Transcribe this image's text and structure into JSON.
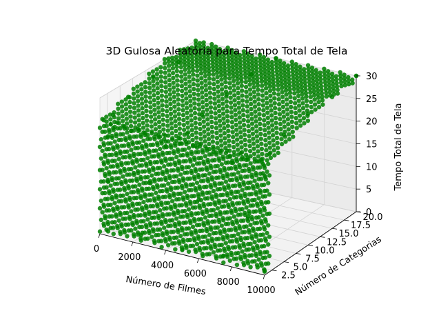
{
  "chart_data": {
    "type": "scatter",
    "projection": "3d",
    "title": "3D Gulosa Aleatória para Tempo Total de Tela",
    "xlabel": "Número de Filmes",
    "ylabel": "Número de Categorias",
    "zlabel": "Tempo Total de Tela",
    "xlim": [
      0,
      10000
    ],
    "ylim": [
      1,
      20
    ],
    "zlim": [
      0,
      30
    ],
    "xticks": [
      "0",
      "2000",
      "4000",
      "6000",
      "8000",
      "10000"
    ],
    "yticks": [
      "2.5",
      "5.0",
      "7.5",
      "10.0",
      "12.5",
      "15.0",
      "17.5",
      "20.0"
    ],
    "zticks": [
      "0",
      "5",
      "10",
      "15",
      "20",
      "25",
      "30"
    ],
    "grid": true,
    "marker_color": "#008000",
    "series": [
      {
        "points": [
          {
            "x": 500,
            "y": 1,
            "z": 1
          },
          {
            "x": 2500,
            "y": 1,
            "z": 2
          },
          {
            "x": 5000,
            "y": 1,
            "z": 1
          },
          {
            "x": 7500,
            "y": 1,
            "z": 2
          },
          {
            "x": 10000,
            "y": 1,
            "z": 1
          },
          {
            "x": 500,
            "y": 1,
            "z": 12
          },
          {
            "x": 3000,
            "y": 1,
            "z": 14
          },
          {
            "x": 6000,
            "y": 1,
            "z": 13
          },
          {
            "x": 9000,
            "y": 1,
            "z": 12
          },
          {
            "x": 500,
            "y": 1,
            "z": 22
          },
          {
            "x": 4000,
            "y": 1,
            "z": 23
          },
          {
            "x": 8000,
            "y": 1,
            "z": 23
          },
          {
            "x": 10000,
            "y": 1,
            "z": 22
          },
          {
            "x": 500,
            "y": 2,
            "z": 26
          },
          {
            "x": 5000,
            "y": 2,
            "z": 26
          },
          {
            "x": 10000,
            "y": 2,
            "z": 26
          },
          {
            "x": 500,
            "y": 5,
            "z": 28
          },
          {
            "x": 5000,
            "y": 5,
            "z": 28
          },
          {
            "x": 10000,
            "y": 5,
            "z": 28
          },
          {
            "x": 500,
            "y": 10,
            "z": 29
          },
          {
            "x": 5000,
            "y": 10,
            "z": 29
          },
          {
            "x": 10000,
            "y": 10,
            "z": 29
          },
          {
            "x": 500,
            "y": 15,
            "z": 29
          },
          {
            "x": 5000,
            "y": 15,
            "z": 30
          },
          {
            "x": 10000,
            "y": 15,
            "z": 29
          },
          {
            "x": 500,
            "y": 20,
            "z": 30
          },
          {
            "x": 5000,
            "y": 20,
            "z": 30
          },
          {
            "x": 10000,
            "y": 20,
            "z": 30
          }
        ]
      }
    ]
  }
}
